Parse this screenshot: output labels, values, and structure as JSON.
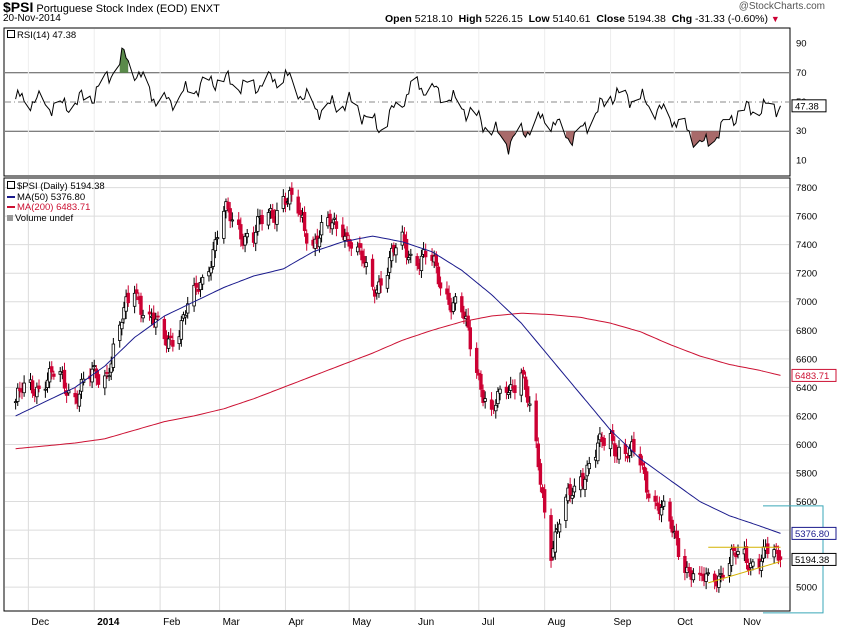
{
  "header": {
    "symbol": "$PSI",
    "name": "Portuguese Stock Index (EOD)",
    "exchange": "ENXT",
    "date": "20-Nov-2014",
    "watermark": "@StockCharts.com",
    "open_label": "Open",
    "open": "5218.10",
    "high_label": "High",
    "high": "5226.15",
    "low_label": "Low",
    "low": "5140.61",
    "close_label": "Close",
    "close": "5194.38",
    "chg_label": "Chg",
    "chg": "-31.33 (-0.60%)",
    "chg_arrow": "▼"
  },
  "rsi_panel": {
    "legend": "RSI(14) 47.38",
    "last_label": "47.38"
  },
  "price_panel": {
    "legend_main": "$PSI (Daily) 5194.38",
    "legend_ma50": "MA(50) 5376.80",
    "legend_ma200": "MA(200) 6483.71",
    "legend_volume": "Volume undef",
    "ma200_tag": "6483.71",
    "ma50_tag": "5376.80",
    "close_tag": "5194.38"
  },
  "colors": {
    "up": "#000000",
    "down": "#cc0033",
    "ma50": "#1a1a8c",
    "ma200": "#cc1133",
    "rsi_overbought_fill": "#5a8a4a",
    "rsi_oversold_fill": "#a86a6a",
    "triangle": "#d4b200",
    "cyan": "#3aa7b8",
    "grid": "#dcdcdc"
  },
  "chart_data": [
    {
      "type": "line",
      "title": "RSI(14)",
      "ylim": [
        0,
        100
      ],
      "yticks": [
        "10",
        "30",
        "50",
        "70",
        "90"
      ],
      "reference_lines": [
        70,
        50,
        30
      ],
      "x": [
        "2013-12-01",
        "2013-12-15",
        "2014-01-01",
        "2014-01-15",
        "2014-02-01",
        "2014-02-15",
        "2014-03-01",
        "2014-03-15",
        "2014-04-01",
        "2014-04-15",
        "2014-05-01",
        "2014-05-15",
        "2014-06-01",
        "2014-06-15",
        "2014-07-01",
        "2014-07-15",
        "2014-08-01",
        "2014-08-15",
        "2014-09-01",
        "2014-09-15",
        "2014-10-01",
        "2014-10-15",
        "2014-11-01",
        "2014-11-20"
      ],
      "series": [
        {
          "values": [
            52,
            46,
            55,
            82,
            48,
            58,
            66,
            60,
            68,
            45,
            50,
            32,
            62,
            55,
            38,
            22,
            40,
            24,
            55,
            52,
            38,
            20,
            44,
            47.38
          ]
        }
      ]
    },
    {
      "type": "line",
      "ylim": [
        4840,
        7860
      ],
      "yticks": [
        "5000",
        "5200",
        "5400",
        "5600",
        "5800",
        "6000",
        "6200",
        "6400",
        "6600",
        "6800",
        "7000",
        "7200",
        "7400",
        "7600",
        "7800"
      ],
      "xticks": [
        "Dec",
        "2014",
        "Feb",
        "Mar",
        "Apr",
        "May",
        "Jun",
        "Jul",
        "Aug",
        "Sep",
        "Oct",
        "Nov"
      ],
      "x": [
        "2013-11-25",
        "2013-12-09",
        "2013-12-23",
        "2014-01-06",
        "2014-01-20",
        "2014-02-03",
        "2014-02-17",
        "2014-03-03",
        "2014-03-17",
        "2014-03-31",
        "2014-04-14",
        "2014-04-28",
        "2014-05-12",
        "2014-05-26",
        "2014-06-09",
        "2014-06-23",
        "2014-07-07",
        "2014-07-21",
        "2014-08-04",
        "2014-08-18",
        "2014-09-01",
        "2014-09-15",
        "2014-09-29",
        "2014-10-13",
        "2014-10-27",
        "2014-11-10",
        "2014-11-20"
      ],
      "series": [
        {
          "name": "$PSI (Daily)",
          "values": [
            6300,
            6480,
            6380,
            6500,
            7100,
            6700,
            7000,
            7600,
            7450,
            7750,
            7450,
            7550,
            7100,
            7400,
            7250,
            6900,
            6200,
            6550,
            5300,
            5800,
            6050,
            5850,
            5400,
            5000,
            5180,
            5220,
            5194.38
          ]
        },
        {
          "name": "MA(50)",
          "values": [
            6200,
            6300,
            6400,
            6550,
            6750,
            6900,
            7000,
            7100,
            7180,
            7230,
            7350,
            7420,
            7460,
            7420,
            7350,
            7220,
            7050,
            6850,
            6600,
            6350,
            6100,
            5900,
            5750,
            5600,
            5500,
            5430,
            5376.8
          ]
        },
        {
          "name": "MA(200)",
          "values": [
            5970,
            5990,
            6010,
            6040,
            6100,
            6160,
            6200,
            6250,
            6320,
            6400,
            6480,
            6560,
            6640,
            6730,
            6800,
            6860,
            6900,
            6920,
            6910,
            6890,
            6850,
            6790,
            6700,
            6620,
            6560,
            6520,
            6483.71
          ]
        }
      ]
    }
  ]
}
